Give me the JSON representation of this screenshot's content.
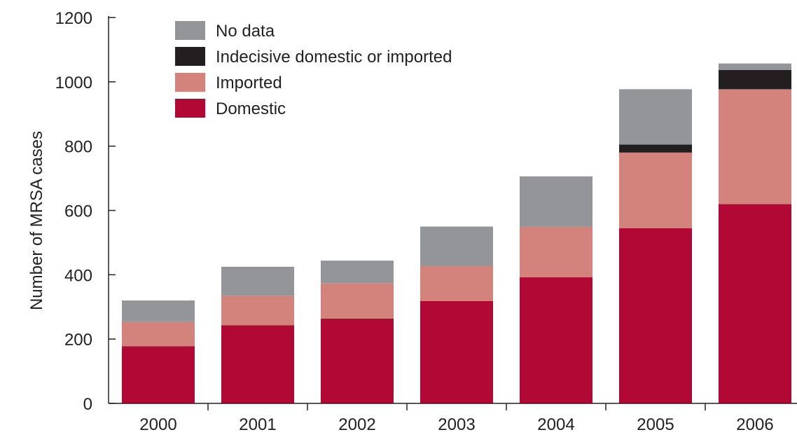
{
  "chart_data": {
    "type": "bar",
    "stacked": true,
    "categories": [
      "2000",
      "2001",
      "2002",
      "2003",
      "2004",
      "2005",
      "2006"
    ],
    "series": [
      {
        "name": "Domestic",
        "color": "#b10835",
        "values": [
          178,
          243,
          264,
          318,
          392,
          545,
          620
        ]
      },
      {
        "name": "Imported",
        "color": "#d4827c",
        "values": [
          77,
          92,
          110,
          110,
          157,
          235,
          357
        ]
      },
      {
        "name": "Indecisive domestic or imported",
        "color": "#231f20",
        "values": [
          0,
          0,
          0,
          0,
          0,
          25,
          60
        ]
      },
      {
        "name": "No data",
        "color": "#939598",
        "values": [
          65,
          90,
          70,
          122,
          157,
          172,
          20
        ]
      }
    ],
    "legend_order": [
      "No data",
      "Indecisive domestic or imported",
      "Imported",
      "Domestic"
    ],
    "legend_position": "top-left",
    "ylabel": "Number of MRSA cases",
    "xlabel": "",
    "ylim": [
      0,
      1200
    ],
    "yticks": [
      0,
      200,
      400,
      600,
      800,
      1000,
      1200
    ],
    "grid": false
  }
}
